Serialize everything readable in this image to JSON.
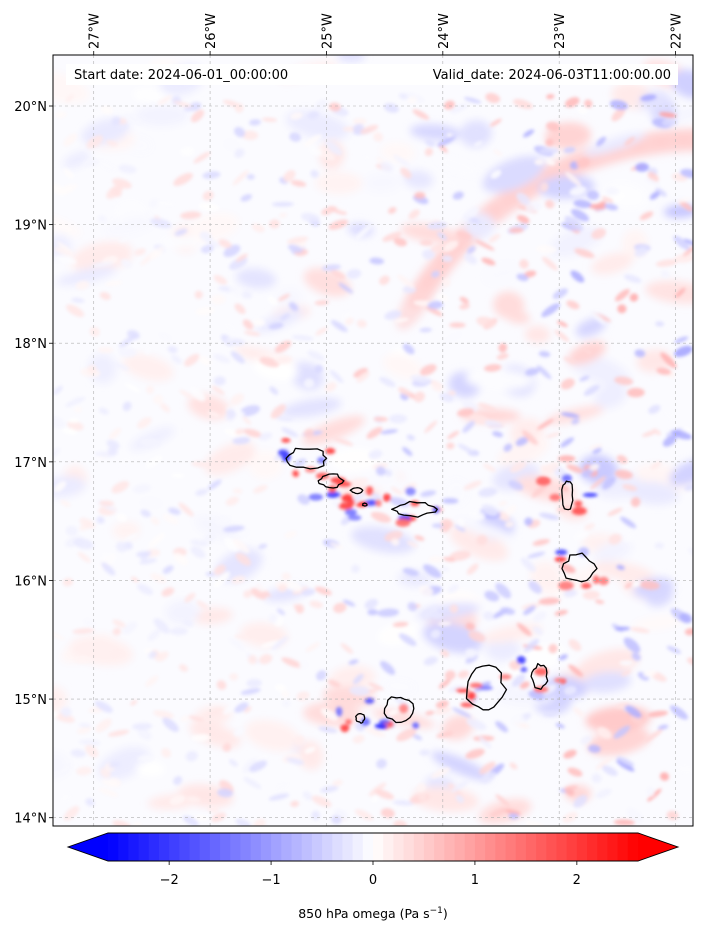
{
  "map": {
    "start_date": "Start date: 2024-06-01_00:00:00",
    "valid_date": "Valid_date: 2024-06-03T11:00:00.00",
    "lon_range": [
      -27.35,
      -21.85
    ],
    "lat_range": [
      13.93,
      20.43
    ],
    "lon_ticks": [
      {
        "value": -27,
        "label": "27°W"
      },
      {
        "value": -26,
        "label": "26°W"
      },
      {
        "value": -25,
        "label": "25°W"
      },
      {
        "value": -24,
        "label": "24°W"
      },
      {
        "value": -23,
        "label": "23°W"
      },
      {
        "value": -22,
        "label": "22°W"
      }
    ],
    "lat_ticks": [
      {
        "value": 20,
        "label": "20°N"
      },
      {
        "value": 19,
        "label": "19°N"
      },
      {
        "value": 18,
        "label": "18°N"
      },
      {
        "value": 17,
        "label": "17°N"
      },
      {
        "value": 16,
        "label": "16°N"
      },
      {
        "value": 15,
        "label": "15°N"
      },
      {
        "value": 14,
        "label": "14°N"
      }
    ],
    "gridlines": true,
    "islands": [
      {
        "name": "Santo Antão",
        "lon": -25.17,
        "lat": 17.03,
        "rx": 0.18,
        "ry": 0.09
      },
      {
        "name": "São Vicente",
        "lon": -24.96,
        "lat": 16.84,
        "rx": 0.1,
        "ry": 0.06
      },
      {
        "name": "Santa Luzia",
        "lon": -24.74,
        "lat": 16.76,
        "rx": 0.05,
        "ry": 0.025
      },
      {
        "name": "Branco",
        "lon": -24.67,
        "lat": 16.64,
        "rx": 0.02,
        "ry": 0.012
      },
      {
        "name": "São Nicolau",
        "lon": -24.25,
        "lat": 16.6,
        "rx": 0.18,
        "ry": 0.06
      },
      {
        "name": "Sal",
        "lon": -22.93,
        "lat": 16.72,
        "rx": 0.05,
        "ry": 0.13
      },
      {
        "name": "Boa Vista",
        "lon": -22.83,
        "lat": 16.1,
        "rx": 0.14,
        "ry": 0.12
      },
      {
        "name": "Maio",
        "lon": -23.17,
        "lat": 15.19,
        "rx": 0.07,
        "ry": 0.1
      },
      {
        "name": "Santiago",
        "lon": -23.63,
        "lat": 15.08,
        "rx": 0.16,
        "ry": 0.2
      },
      {
        "name": "Fogo",
        "lon": -24.38,
        "lat": 14.92,
        "rx": 0.12,
        "ry": 0.11
      },
      {
        "name": "Brava",
        "lon": -24.71,
        "lat": 14.84,
        "rx": 0.04,
        "ry": 0.04
      }
    ]
  },
  "colorbar": {
    "label": "850 hPa omega (Pa s",
    "label_sup": "−1",
    "label_end": ")",
    "min": -2.6,
    "max": 2.6,
    "ticks": [
      {
        "value": -2,
        "label": "−2"
      },
      {
        "value": -1,
        "label": "−1"
      },
      {
        "value": 0,
        "label": "0"
      },
      {
        "value": 1,
        "label": "1"
      },
      {
        "value": 2,
        "label": "2"
      }
    ],
    "color_low": "#0000ff",
    "color_mid": "#ffffff",
    "color_high": "#ff0000"
  }
}
